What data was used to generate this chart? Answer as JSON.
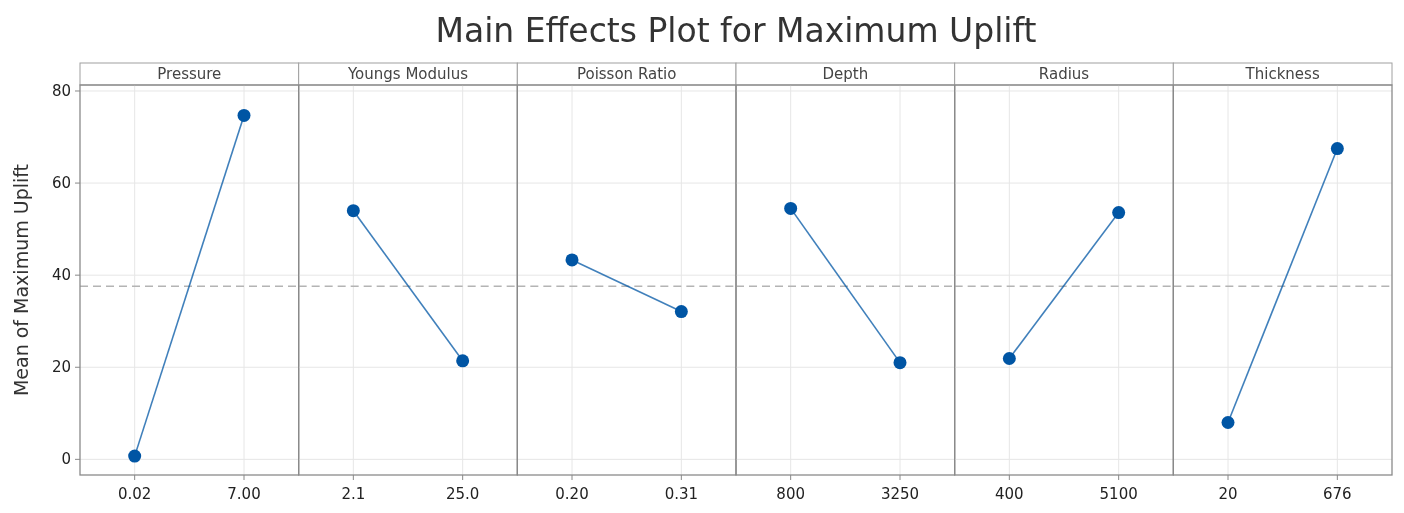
{
  "chart_data": [
    {
      "type": "other",
      "title": "Main Effects Plot for Maximum Uplift"
    },
    {
      "type": "line",
      "subtitle": "Pressure",
      "ylabel": "Mean of Maximum Uplift",
      "categories": [
        "0.02",
        "7.00"
      ],
      "series": [
        {
          "color": "#0055a4",
          "values": [
            0.7,
            74.7
          ]
        }
      ],
      "ylim": [
        -3.4,
        81.3
      ],
      "yticks": [
        0,
        20,
        40,
        60,
        80
      ],
      "grid": true,
      "marker": "circle",
      "line_style": "solid",
      "ref_lines": [
        {
          "axis": "y",
          "value": 37.6,
          "color": "#b4b4b4",
          "line_style": "dashed"
        }
      ]
    },
    {
      "type": "line",
      "subtitle": "Youngs Modulus",
      "categories": [
        "2.1",
        "25.0"
      ],
      "series": [
        {
          "color": "#0055a4",
          "values": [
            54.0,
            21.4
          ]
        }
      ],
      "ylim": [
        -3.4,
        81.3
      ],
      "yticks": [
        0,
        20,
        40,
        60,
        80
      ],
      "tick_labels": "x",
      "grid": true,
      "marker": "circle",
      "line_style": "solid",
      "ref_lines": [
        {
          "axis": "y",
          "value": 37.6,
          "color": "#b4b4b4",
          "line_style": "dashed"
        }
      ]
    },
    {
      "type": "line",
      "subtitle": "Poisson Ratio",
      "categories": [
        "0.20",
        "0.31"
      ],
      "series": [
        {
          "color": "#0055a4",
          "values": [
            43.3,
            32.1
          ]
        }
      ],
      "ylim": [
        -3.4,
        81.3
      ],
      "yticks": [
        0,
        20,
        40,
        60,
        80
      ],
      "tick_labels": "x",
      "grid": true,
      "marker": "circle",
      "line_style": "solid",
      "ref_lines": [
        {
          "axis": "y",
          "value": 37.6,
          "color": "#b4b4b4",
          "line_style": "dashed"
        }
      ]
    },
    {
      "type": "line",
      "subtitle": "Depth",
      "categories": [
        "800",
        "3250"
      ],
      "series": [
        {
          "color": "#0055a4",
          "values": [
            54.5,
            21.0
          ]
        }
      ],
      "ylim": [
        -3.4,
        81.3
      ],
      "yticks": [
        0,
        20,
        40,
        60,
        80
      ],
      "tick_labels": "x",
      "grid": true,
      "marker": "circle",
      "line_style": "solid",
      "ref_lines": [
        {
          "axis": "y",
          "value": 37.6,
          "color": "#b4b4b4",
          "line_style": "dashed"
        }
      ]
    },
    {
      "type": "line",
      "subtitle": "Radius",
      "categories": [
        "400",
        "5100"
      ],
      "series": [
        {
          "color": "#0055a4",
          "values": [
            21.9,
            53.6
          ]
        }
      ],
      "ylim": [
        -3.4,
        81.3
      ],
      "yticks": [
        0,
        20,
        40,
        60,
        80
      ],
      "tick_labels": "x",
      "grid": true,
      "marker": "circle",
      "line_style": "solid",
      "ref_lines": [
        {
          "axis": "y",
          "value": 37.6,
          "color": "#b4b4b4",
          "line_style": "dashed"
        }
      ]
    },
    {
      "type": "line",
      "subtitle": "Thickness",
      "categories": [
        "20",
        "676"
      ],
      "series": [
        {
          "color": "#0055a4",
          "values": [
            8.0,
            67.5
          ]
        }
      ],
      "ylim": [
        -3.4,
        81.3
      ],
      "yticks": [
        0,
        20,
        40,
        60,
        80
      ],
      "tick_labels": "x",
      "grid": true,
      "marker": "circle",
      "line_style": "solid",
      "ref_lines": [
        {
          "axis": "y",
          "value": 37.6,
          "color": "#b4b4b4",
          "line_style": "dashed"
        }
      ]
    }
  ]
}
